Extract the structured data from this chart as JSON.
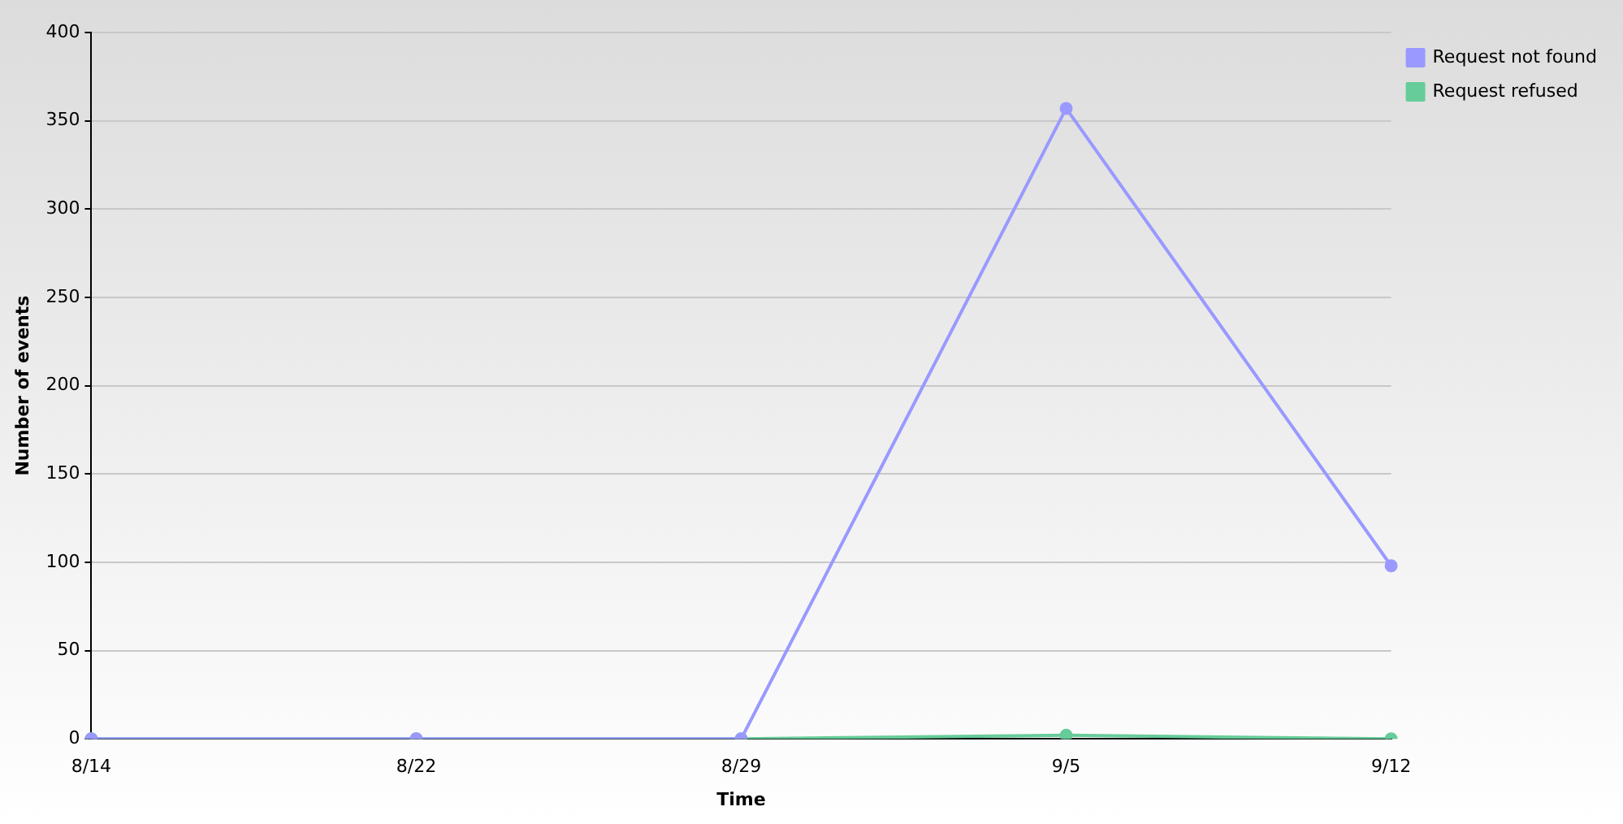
{
  "chart_data": {
    "type": "line",
    "xlabel": "Time",
    "ylabel": "Number of events",
    "categories": [
      "8/14",
      "8/22",
      "8/29",
      "9/5",
      "9/12"
    ],
    "series": [
      {
        "name": "Request not found",
        "color": "#9999ff",
        "values": [
          0,
          0,
          0,
          357,
          98
        ]
      },
      {
        "name": "Request refused",
        "color": "#66cc99",
        "values": [
          0,
          0,
          0,
          2,
          0
        ]
      }
    ],
    "ylim": [
      0,
      400
    ],
    "yticks": [
      0,
      50,
      100,
      150,
      200,
      250,
      300,
      350,
      400
    ],
    "grid": "y",
    "legend": "top right",
    "marker": "circle",
    "line_style": "solid"
  }
}
